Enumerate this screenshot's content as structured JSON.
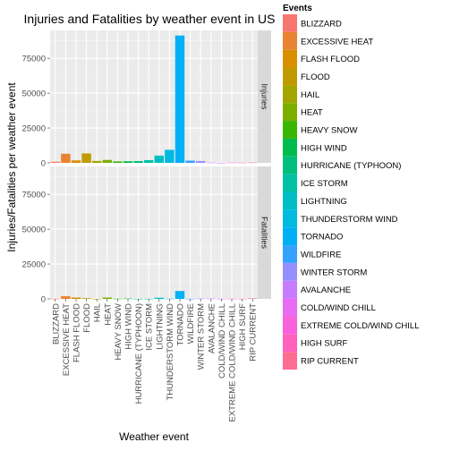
{
  "chart_data": {
    "type": "bar",
    "title": "Injuries and Fatalities by weather event in US",
    "xlabel": "Weather event",
    "ylabel": "Injuries/Fatalities per weather event",
    "ylim": [
      0,
      95000
    ],
    "yticks": [
      0,
      25000,
      50000,
      75000
    ],
    "ytick_labels": [
      "0",
      "25000",
      "50000",
      "75000"
    ],
    "grid": true,
    "legend_placement": "right",
    "legend_title": "Events",
    "categories": [
      "BLIZZARD",
      "EXCESSIVE HEAT",
      "FLASH FLOOD",
      "FLOOD",
      "HAIL",
      "HEAT",
      "HEAVY SNOW",
      "HIGH WIND",
      "HURRICANE (TYPHOON)",
      "ICE STORM",
      "LIGHTNING",
      "THUNDERSTORM WIND",
      "TORNADO",
      "WILDFIRE",
      "WINTER STORM",
      "AVALANCHE",
      "COLD/WIND CHILL",
      "EXTREME COLD/WIND CHILL",
      "HIGH SURF",
      "RIP CURRENT"
    ],
    "colors": [
      "#F8766D",
      "#EA8331",
      "#D89000",
      "#C09B00",
      "#A3A500",
      "#7CAE00",
      "#39B600",
      "#00BB4E",
      "#00BF7D",
      "#00C1A3",
      "#00BFC4",
      "#00BAE0",
      "#00B0F6",
      "#35A2FF",
      "#9590FF",
      "#C77CFF",
      "#E76BF3",
      "#FA62DB",
      "#FF62BC",
      "#FF6C91"
    ],
    "panels": [
      {
        "name": "Injuries",
        "values": [
          805,
          6525,
          1777,
          6789,
          1361,
          2100,
          1021,
          1137,
          1275,
          1975,
          5230,
          9353,
          91346,
          1606,
          1321,
          170,
          12,
          231,
          156,
          232
        ]
      },
      {
        "name": "Fatalities",
        "values": [
          101,
          1903,
          978,
          470,
          15,
          937,
          127,
          248,
          64,
          89,
          816,
          133,
          5633,
          75,
          206,
          224,
          95,
          125,
          101,
          368
        ]
      }
    ]
  }
}
